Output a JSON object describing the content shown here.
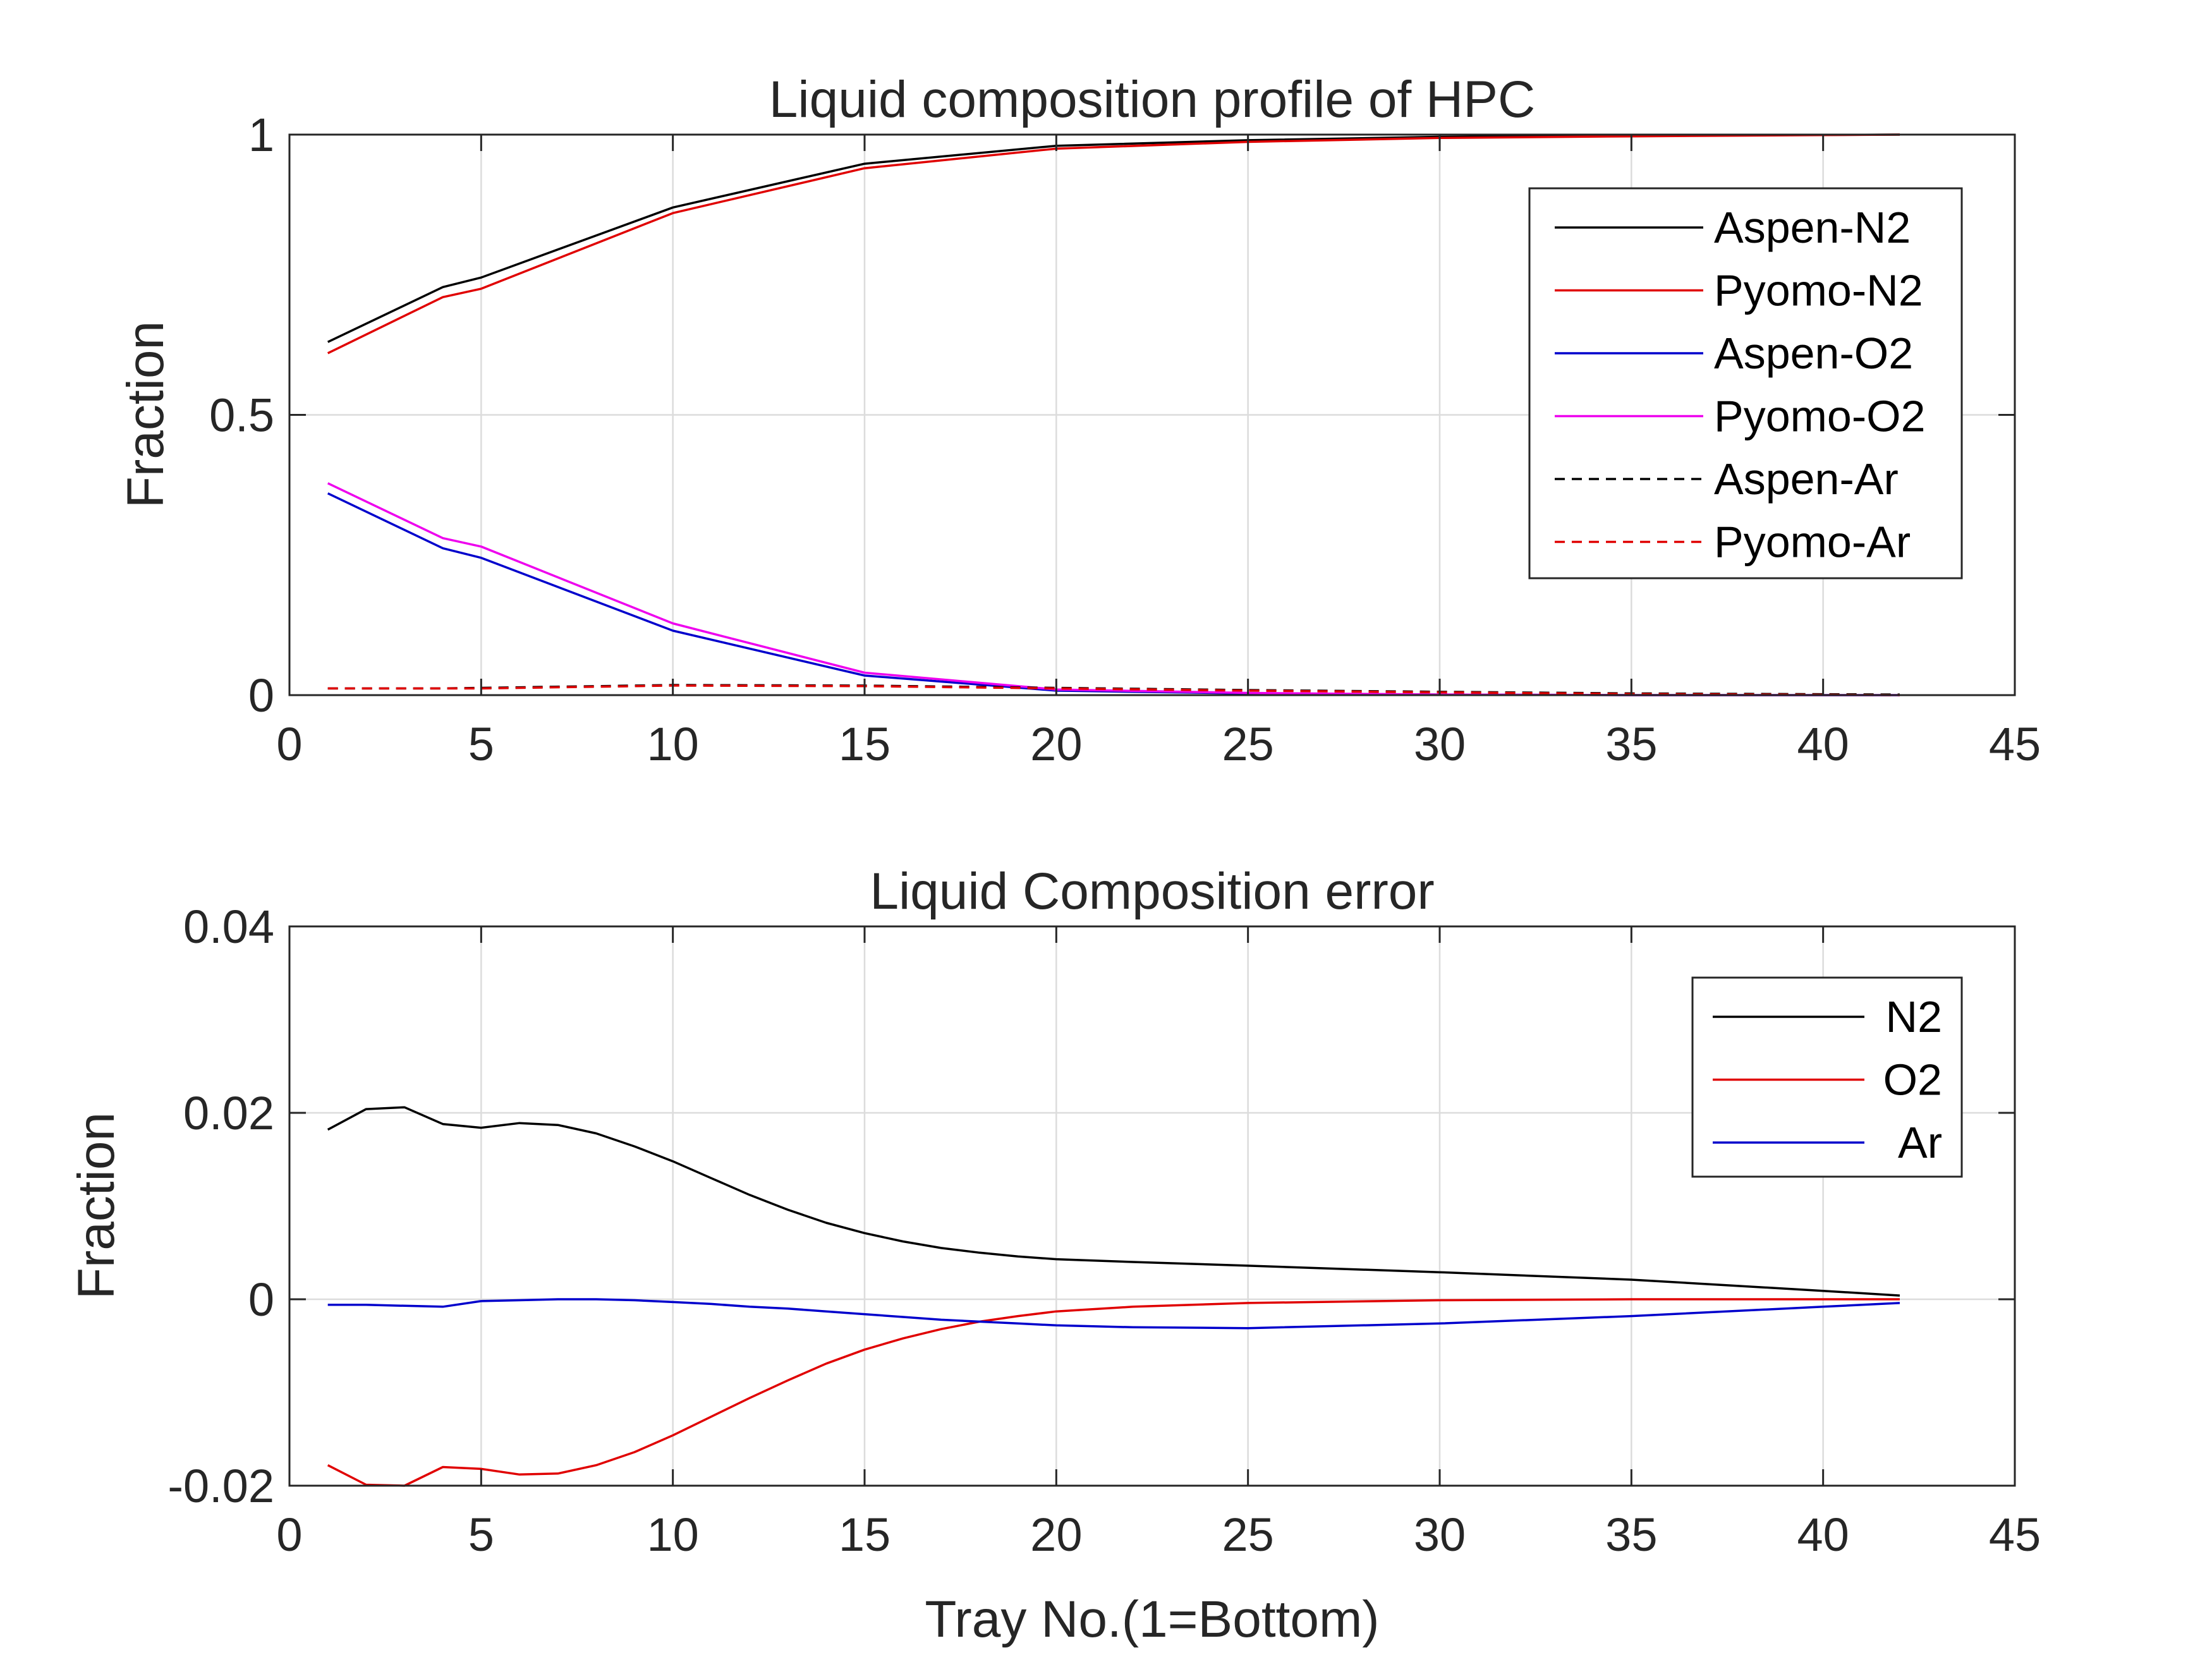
{
  "chart_data": [
    {
      "type": "line",
      "title": "Liquid composition profile of HPC",
      "xlabel": "",
      "ylabel": "Fraction",
      "xlim": [
        0,
        45
      ],
      "ylim": [
        0,
        1
      ],
      "xticks": [
        0,
        5,
        10,
        15,
        20,
        25,
        30,
        35,
        40,
        45
      ],
      "yticks": [
        0,
        0.5,
        1
      ],
      "xtick_labels": [
        "0",
        "5",
        "10",
        "15",
        "20",
        "25",
        "30",
        "35",
        "40",
        "45"
      ],
      "ytick_labels": [
        "0",
        "0.5",
        "1"
      ],
      "grid": true,
      "legend_placement": "top-right",
      "x": [
        1,
        4,
        5,
        10,
        15,
        20,
        25,
        30,
        35,
        42
      ],
      "series": [
        {
          "name": "Aspen-N2",
          "color": "#000000",
          "dash": "solid",
          "values": [
            0.63,
            0.728,
            0.745,
            0.87,
            0.948,
            0.98,
            0.99,
            0.996,
            0.998,
            1.0
          ]
        },
        {
          "name": "Pyomo-N2",
          "color": "#e00000",
          "dash": "solid",
          "values": [
            0.61,
            0.71,
            0.725,
            0.86,
            0.94,
            0.975,
            0.987,
            0.994,
            0.997,
            1.0
          ]
        },
        {
          "name": "Aspen-O2",
          "color": "#0000cc",
          "dash": "solid",
          "values": [
            0.36,
            0.262,
            0.245,
            0.115,
            0.035,
            0.008,
            0.003,
            0.001,
            0.0,
            0.0
          ]
        },
        {
          "name": "Pyomo-O2",
          "color": "#ee00ee",
          "dash": "solid",
          "values": [
            0.378,
            0.28,
            0.265,
            0.128,
            0.04,
            0.01,
            0.004,
            0.001,
            0.0,
            0.0
          ]
        },
        {
          "name": "Aspen-Ar",
          "color": "#000000",
          "dash": "dashed",
          "values": [
            0.012,
            0.012,
            0.013,
            0.018,
            0.017,
            0.013,
            0.009,
            0.006,
            0.003,
            0.001
          ]
        },
        {
          "name": "Pyomo-Ar",
          "color": "#e00000",
          "dash": "dashed",
          "values": [
            0.012,
            0.012,
            0.012,
            0.017,
            0.016,
            0.012,
            0.008,
            0.005,
            0.002,
            0.0
          ]
        }
      ]
    },
    {
      "type": "line",
      "title": "Liquid Composition error",
      "xlabel": "Tray No.(1=Bottom)",
      "ylabel": "Fraction",
      "xlim": [
        0,
        45
      ],
      "ylim": [
        -0.02,
        0.04
      ],
      "xticks": [
        0,
        5,
        10,
        15,
        20,
        25,
        30,
        35,
        40,
        45
      ],
      "yticks": [
        -0.02,
        0,
        0.02,
        0.04
      ],
      "xtick_labels": [
        "0",
        "5",
        "10",
        "15",
        "20",
        "25",
        "30",
        "35",
        "40",
        "45"
      ],
      "ytick_labels": [
        "-0.02",
        "0",
        "0.02",
        "0.04"
      ],
      "grid": true,
      "legend_placement": "top-right",
      "x": [
        1,
        2,
        3,
        4,
        5,
        6,
        7,
        8,
        9,
        10,
        11,
        12,
        13,
        14,
        15,
        16,
        17,
        18,
        19,
        20,
        22,
        25,
        30,
        35,
        40,
        42
      ],
      "series": [
        {
          "name": "N2",
          "color": "#000000",
          "dash": "solid",
          "values": [
            0.0182,
            0.0204,
            0.0206,
            0.0188,
            0.0184,
            0.0189,
            0.0187,
            0.0178,
            0.0164,
            0.0148,
            0.013,
            0.0112,
            0.0096,
            0.0082,
            0.0071,
            0.0062,
            0.0055,
            0.005,
            0.0046,
            0.0043,
            0.004,
            0.0036,
            0.0029,
            0.0021,
            0.0009,
            0.0004
          ]
        },
        {
          "name": "O2",
          "color": "#e00000",
          "dash": "solid",
          "values": [
            -0.0178,
            -0.0199,
            -0.02,
            -0.018,
            -0.0182,
            -0.0188,
            -0.0187,
            -0.0178,
            -0.0164,
            -0.0146,
            -0.0126,
            -0.0106,
            -0.0087,
            -0.0069,
            -0.0054,
            -0.0042,
            -0.0032,
            -0.0024,
            -0.0018,
            -0.0013,
            -0.0008,
            -0.0004,
            -0.0001,
            0.0,
            0.0,
            0.0
          ]
        },
        {
          "name": "Ar",
          "color": "#0000cc",
          "dash": "solid",
          "values": [
            -0.0006,
            -0.0006,
            -0.0007,
            -0.0008,
            -0.0002,
            -0.0001,
            0.0,
            0.0,
            -0.0001,
            -0.0003,
            -0.0005,
            -0.0008,
            -0.001,
            -0.0013,
            -0.0016,
            -0.0019,
            -0.0022,
            -0.0024,
            -0.0026,
            -0.0028,
            -0.003,
            -0.0031,
            -0.0026,
            -0.0018,
            -0.0008,
            -0.0004
          ]
        }
      ]
    }
  ]
}
